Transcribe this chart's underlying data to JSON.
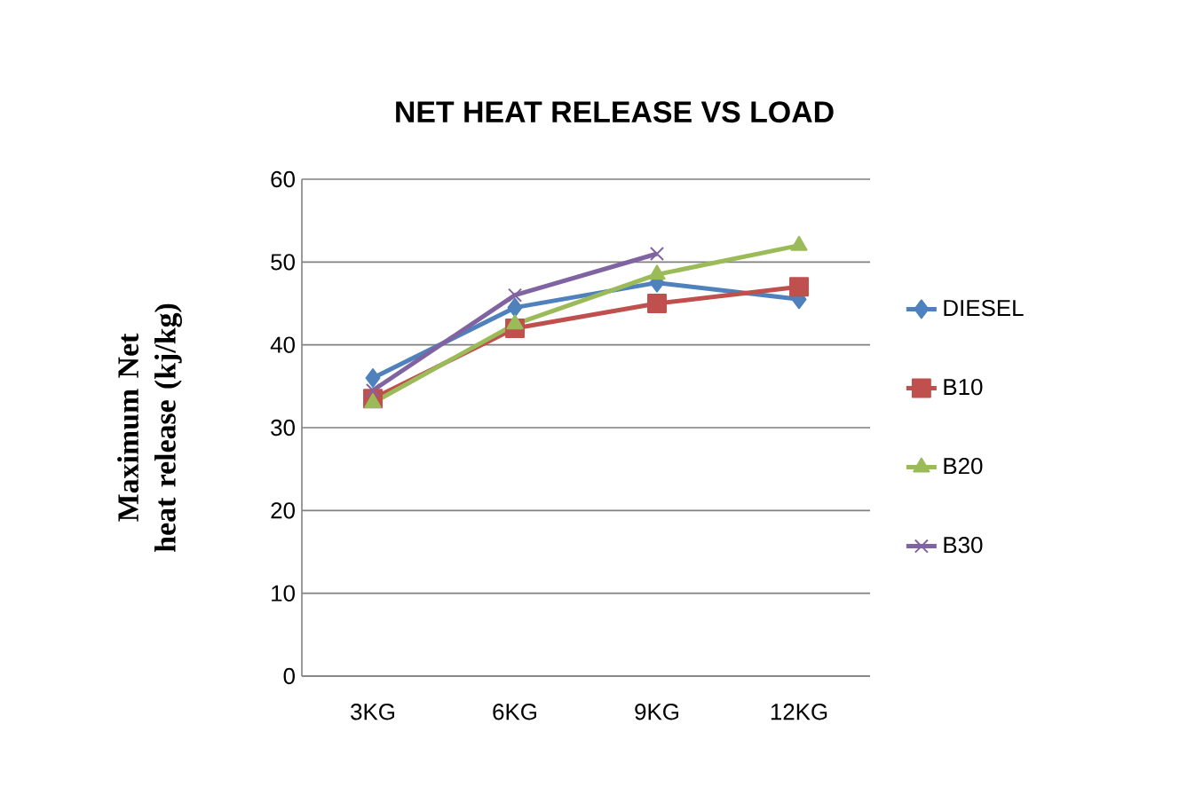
{
  "chart_data": {
    "type": "line",
    "title": "NET HEAT RELEASE VS LOAD",
    "ylabel": "Maximum Net heat release (kj/kg)",
    "categories": [
      "3KG",
      "6KG",
      "9KG",
      "12KG"
    ],
    "series": [
      {
        "name": "DIESEL",
        "color": "#4f81bd",
        "marker": "diamond",
        "values": [
          36,
          44.5,
          47.5,
          45.5
        ]
      },
      {
        "name": "B10",
        "color": "#c0504d",
        "marker": "square",
        "values": [
          33.5,
          42,
          45,
          47
        ]
      },
      {
        "name": "B20",
        "color": "#9bbb59",
        "marker": "triangle",
        "values": [
          33,
          42.5,
          48.5,
          52
        ]
      },
      {
        "name": "B30",
        "color": "#8064a2",
        "marker": "cross",
        "values": [
          34.5,
          46,
          51,
          null
        ]
      }
    ],
    "ylim": [
      0,
      60
    ],
    "yticks": [
      0,
      10,
      20,
      30,
      40,
      50,
      60
    ],
    "grid": "y",
    "legend": "right"
  }
}
